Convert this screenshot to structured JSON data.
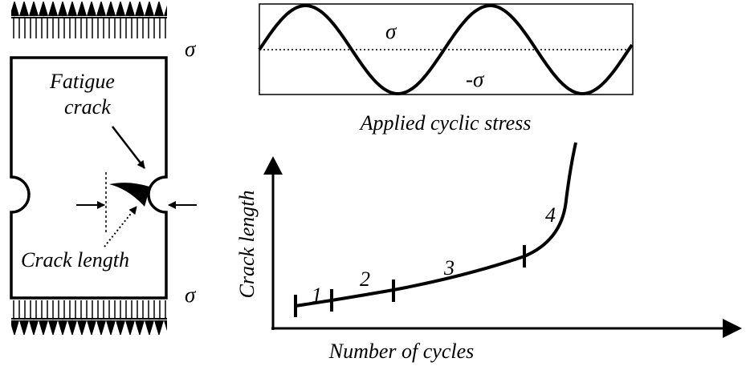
{
  "specimen": {
    "stress_top": "σ",
    "stress_bottom": "σ",
    "crack_label": [
      "Fatigue",
      "crack"
    ],
    "length_label": "Crack length"
  },
  "stress_plot": {
    "positive": "σ",
    "negative": "-σ",
    "caption": "Applied cyclic stress"
  },
  "growth_plot": {
    "y_label": "Crack length",
    "x_label": "Number of cycles",
    "stages": [
      "1",
      "2",
      "3",
      "4"
    ]
  }
}
